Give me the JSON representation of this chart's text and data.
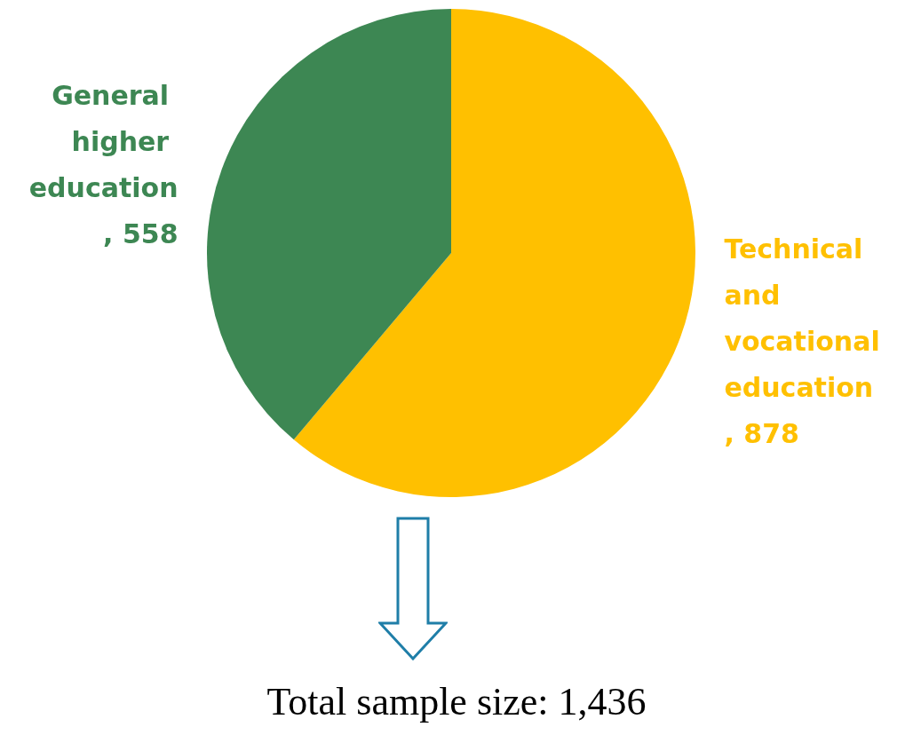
{
  "chart_data": {
    "type": "pie",
    "categories": [
      "Technical and vocational education",
      "General higher education"
    ],
    "values": [
      878,
      558
    ],
    "colors": [
      "#ffc000",
      "#3d8753"
    ],
    "value_labels": [
      ", 878",
      ", 558"
    ],
    "annotations": [
      "Total sample size: 1,436"
    ]
  }
}
